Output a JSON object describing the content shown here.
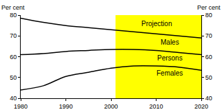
{
  "chart_data": {
    "type": "line",
    "y_title": "Per cent",
    "y2_title": "Per cent",
    "x": [
      1980,
      1985,
      1990,
      1995,
      2000,
      2005,
      2010,
      2015,
      2020
    ],
    "series": [
      {
        "name": "Males",
        "color": "#000000",
        "values": [
          78.5,
          76.5,
          75,
          74,
          73,
          72,
          71,
          70,
          69
        ]
      },
      {
        "name": "Persons",
        "color": "#000000",
        "values": [
          61,
          61.5,
          62.5,
          63,
          63.5,
          63.5,
          63,
          62,
          61
        ]
      },
      {
        "name": "Females",
        "color": "#000000",
        "values": [
          44,
          46,
          50.5,
          52.5,
          54.5,
          55.5,
          55.5,
          55,
          53.5
        ]
      }
    ],
    "annotations": [
      {
        "text": "Males",
        "x": 2013,
        "y": 67
      },
      {
        "text": "Persons",
        "x": 2013,
        "y": 59.5
      },
      {
        "text": "Females",
        "x": 2013,
        "y": 52
      },
      {
        "text": "Projection",
        "x": 2010,
        "y": 76
      }
    ],
    "projection": {
      "start": 2001,
      "end": 2020,
      "color": "#ffff00"
    },
    "xlim": [
      1980,
      2020
    ],
    "xticks": [
      1980,
      1990,
      2000,
      2010,
      2020
    ],
    "ylim": [
      40,
      80
    ],
    "yticks": [
      40,
      50,
      60,
      70,
      80
    ],
    "y2lim": [
      40,
      80
    ],
    "y2ticks": [
      40,
      50,
      60,
      70,
      80
    ],
    "grid": false
  }
}
